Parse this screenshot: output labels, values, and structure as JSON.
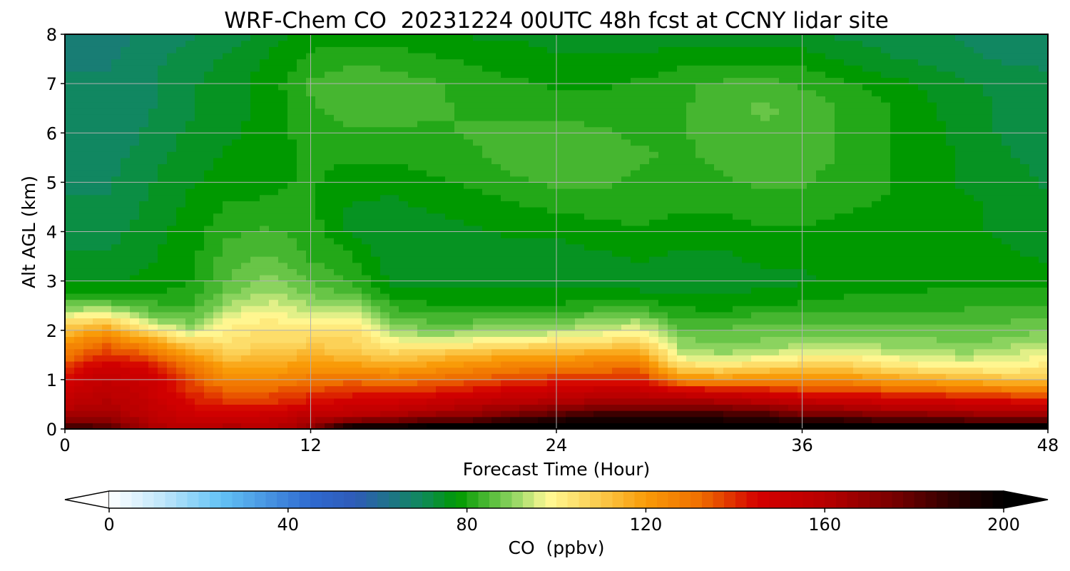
{
  "chart_data": {
    "type": "heatmap",
    "title": "WRF-Chem CO  20231224 00UTC 48h fcst at CCNY lidar site",
    "xlabel": "Forecast Time (Hour)",
    "ylabel": "Alt AGL (km)",
    "xlim": [
      0,
      48
    ],
    "ylim": [
      0,
      8
    ],
    "x_ticks": [
      "0",
      "12",
      "24",
      "36",
      "48"
    ],
    "y_ticks": [
      "0",
      "1",
      "2",
      "3",
      "4",
      "5",
      "6",
      "7",
      "8"
    ],
    "grid": true,
    "x_hours": [
      0,
      2,
      4,
      6,
      8,
      10,
      12,
      14,
      16,
      18,
      20,
      22,
      24,
      26,
      28,
      30,
      32,
      34,
      36,
      38,
      40,
      42,
      44,
      46,
      48
    ],
    "alt_km": [
      0,
      0.25,
      0.5,
      0.75,
      1.0,
      1.25,
      1.5,
      1.75,
      2.0,
      2.25,
      2.5,
      2.75,
      3.0,
      3.5,
      4.0,
      4.5,
      5.0,
      5.5,
      6.0,
      6.5,
      7.0,
      7.5,
      8.0
    ],
    "co_ppbv": [
      [
        190,
        185,
        165,
        160,
        165,
        160,
        170,
        205,
        205,
        210,
        210,
        215,
        215,
        215,
        210,
        205,
        205,
        205,
        210,
        210,
        210,
        210,
        210,
        210,
        210
      ],
      [
        165,
        168,
        158,
        150,
        150,
        152,
        160,
        160,
        165,
        170,
        172,
        180,
        185,
        190,
        190,
        190,
        190,
        188,
        180,
        180,
        175,
        175,
        172,
        170,
        168
      ],
      [
        158,
        162,
        155,
        145,
        140,
        140,
        145,
        150,
        150,
        155,
        160,
        162,
        165,
        168,
        168,
        170,
        168,
        165,
        160,
        158,
        155,
        155,
        152,
        150,
        150
      ],
      [
        152,
        158,
        152,
        140,
        135,
        135,
        138,
        140,
        140,
        142,
        145,
        150,
        152,
        155,
        155,
        150,
        148,
        145,
        140,
        140,
        138,
        136,
        134,
        132,
        130
      ],
      [
        145,
        155,
        150,
        138,
        125,
        125,
        130,
        132,
        130,
        132,
        135,
        138,
        140,
        142,
        142,
        125,
        122,
        125,
        125,
        125,
        120,
        118,
        115,
        112,
        112
      ],
      [
        138,
        150,
        145,
        132,
        118,
        118,
        122,
        122,
        118,
        122,
        125,
        128,
        128,
        130,
        132,
        108,
        105,
        108,
        110,
        110,
        105,
        102,
        100,
        100,
        102
      ],
      [
        130,
        140,
        135,
        120,
        110,
        112,
        115,
        112,
        108,
        112,
        115,
        118,
        118,
        120,
        122,
        95,
        92,
        95,
        98,
        100,
        96,
        94,
        92,
        95,
        98
      ],
      [
        122,
        132,
        122,
        108,
        104,
        106,
        108,
        108,
        100,
        98,
        100,
        102,
        104,
        105,
        108,
        90,
        88,
        89,
        90,
        90,
        90,
        90,
        88,
        90,
        92
      ],
      [
        112,
        120,
        105,
        92,
        101,
        104,
        102,
        104,
        92,
        88,
        90,
        90,
        92,
        94,
        98,
        86,
        86,
        87,
        87,
        87,
        86,
        86,
        86,
        87,
        88
      ],
      [
        100,
        104,
        90,
        86,
        98,
        100,
        96,
        98,
        86,
        84,
        84,
        85,
        86,
        88,
        90,
        82,
        82,
        84,
        84,
        84,
        84,
        84,
        84,
        85,
        85
      ],
      [
        88,
        88,
        84,
        82,
        92,
        96,
        92,
        92,
        82,
        80,
        80,
        80,
        80,
        81,
        82,
        79,
        78,
        80,
        80,
        81,
        81,
        81,
        82,
        82,
        83
      ],
      [
        80,
        80,
        80,
        80,
        88,
        92,
        88,
        85,
        78,
        77,
        77,
        77,
        77,
        77,
        77,
        76,
        76,
        77,
        78,
        79,
        79,
        80,
        80,
        80,
        80
      ],
      [
        76,
        76,
        77,
        79,
        86,
        90,
        85,
        82,
        76,
        76,
        76,
        76,
        75,
        75,
        75,
        75,
        75,
        76,
        76,
        77,
        77,
        78,
        78,
        78,
        78
      ],
      [
        74,
        74,
        76,
        78,
        84,
        86,
        82,
        80,
        74,
        74,
        75,
        75,
        75,
        76,
        77,
        76,
        76,
        77,
        77,
        77,
        77,
        77,
        77,
        77,
        76
      ],
      [
        72,
        72,
        75,
        78,
        82,
        83,
        81,
        76,
        74,
        75,
        76,
        77,
        77,
        78,
        79,
        78,
        78,
        79,
        79,
        78,
        78,
        77,
        77,
        76,
        75
      ],
      [
        71,
        71,
        74,
        77,
        80,
        80,
        80,
        76,
        76,
        77,
        78,
        79,
        80,
        81,
        81,
        80,
        80,
        81,
        81,
        80,
        79,
        78,
        77,
        76,
        74
      ],
      [
        70,
        70,
        73,
        76,
        78,
        79,
        80,
        78,
        77,
        79,
        80,
        82,
        83,
        83,
        82,
        81,
        82,
        83,
        83,
        81,
        80,
        78,
        76,
        75,
        73
      ],
      [
        69,
        69,
        72,
        75,
        77,
        78,
        80,
        80,
        80,
        81,
        82,
        84,
        85,
        84,
        83,
        82,
        83,
        84,
        84,
        82,
        80,
        78,
        76,
        74,
        72
      ],
      [
        68,
        68,
        71,
        74,
        76,
        78,
        81,
        82,
        82,
        82,
        83,
        83,
        84,
        83,
        82,
        82,
        84,
        85,
        84,
        82,
        80,
        78,
        75,
        73,
        72
      ],
      [
        68,
        68,
        70,
        73,
        75,
        78,
        82,
        84,
        84,
        83,
        82,
        82,
        81,
        81,
        81,
        82,
        84,
        86,
        85,
        82,
        80,
        77,
        75,
        73,
        71
      ],
      [
        68,
        68,
        70,
        73,
        75,
        78,
        83,
        85,
        84,
        83,
        81,
        80,
        79,
        79,
        80,
        82,
        83,
        84,
        82,
        80,
        78,
        76,
        74,
        72,
        71
      ],
      [
        67,
        67,
        69,
        72,
        74,
        77,
        80,
        82,
        81,
        80,
        79,
        78,
        77,
        77,
        77,
        78,
        78,
        78,
        78,
        76,
        74,
        73,
        71,
        70,
        70
      ],
      [
        66,
        66,
        68,
        70,
        72,
        75,
        78,
        78,
        78,
        77,
        76,
        76,
        75,
        75,
        75,
        75,
        75,
        75,
        74,
        73,
        72,
        71,
        70,
        69,
        69
      ]
    ],
    "colorbar": {
      "label": "CO  (ppbv)",
      "ticks": [
        "0",
        "40",
        "80",
        "120",
        "160",
        "200"
      ],
      "tick_values": [
        0,
        40,
        80,
        120,
        160,
        200
      ],
      "min": 0,
      "max": 200,
      "extend": "both",
      "color_stops": [
        {
          "value": 0,
          "color": "#ffffff"
        },
        {
          "value": 12,
          "color": "#bfe6fb"
        },
        {
          "value": 25,
          "color": "#63c3f5"
        },
        {
          "value": 45,
          "color": "#2f6ad0"
        },
        {
          "value": 55,
          "color": "#2f5bb8"
        },
        {
          "value": 70,
          "color": "#0f8a5b"
        },
        {
          "value": 78,
          "color": "#009900"
        },
        {
          "value": 90,
          "color": "#8bd35f"
        },
        {
          "value": 98,
          "color": "#fffa96"
        },
        {
          "value": 110,
          "color": "#fbc94a"
        },
        {
          "value": 120,
          "color": "#f99b08"
        },
        {
          "value": 132,
          "color": "#ef6f00"
        },
        {
          "value": 145,
          "color": "#d40000"
        },
        {
          "value": 160,
          "color": "#b80000"
        },
        {
          "value": 175,
          "color": "#7a0000"
        },
        {
          "value": 188,
          "color": "#300000"
        },
        {
          "value": 200,
          "color": "#000000"
        }
      ]
    }
  }
}
